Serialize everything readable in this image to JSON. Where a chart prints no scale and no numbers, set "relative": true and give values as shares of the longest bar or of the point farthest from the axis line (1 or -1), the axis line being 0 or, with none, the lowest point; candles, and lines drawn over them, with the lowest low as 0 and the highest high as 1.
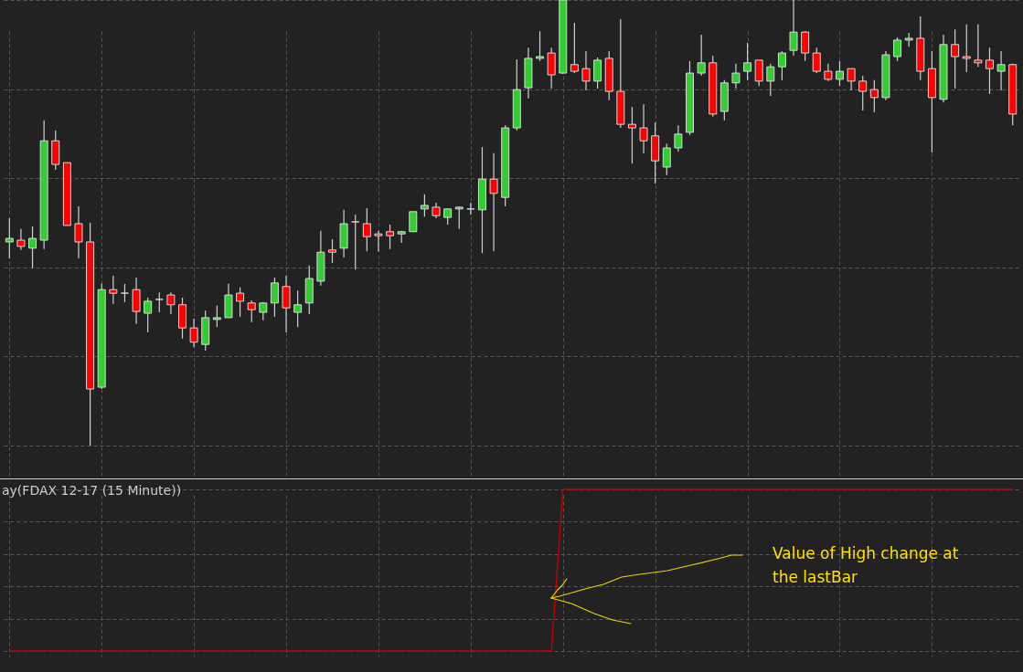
{
  "chart_data": [
    {
      "type": "candlestick",
      "relative": true,
      "grid": true,
      "categories": [
        null,
        null,
        null,
        null,
        null,
        null,
        null,
        null,
        null,
        null,
        null,
        null,
        null,
        null,
        null,
        null,
        null,
        null,
        null,
        null,
        null,
        null,
        null,
        null,
        null,
        null,
        null,
        null,
        null,
        null,
        null,
        null,
        null,
        null,
        null,
        null,
        null,
        null,
        null,
        null,
        null,
        null,
        null,
        null,
        null,
        null,
        null,
        null,
        null,
        null,
        null,
        null,
        null,
        null,
        null,
        null,
        null,
        null,
        null,
        null,
        null,
        null,
        null,
        null,
        null,
        null,
        null,
        null,
        null,
        null,
        null,
        null,
        null,
        null,
        null,
        null,
        null,
        null,
        null,
        null,
        null,
        null,
        null,
        null,
        null,
        null,
        null,
        null
      ],
      "ohlc": [
        [
          0.457,
          0.51,
          0.42,
          0.465
        ],
        [
          0.461,
          0.486,
          0.439,
          0.447
        ],
        [
          0.443,
          0.492,
          0.398,
          0.465
        ],
        [
          0.461,
          0.73,
          0.441,
          0.684
        ],
        [
          0.684,
          0.707,
          0.619,
          0.631
        ],
        [
          0.635,
          0.635,
          0.494,
          0.494
        ],
        [
          0.498,
          0.537,
          0.42,
          0.457
        ],
        [
          0.457,
          0.5,
          0,
          0.127
        ],
        [
          0.131,
          0.363,
          0.127,
          0.35
        ],
        [
          0.35,
          0.381,
          0.318,
          0.342
        ],
        [
          0.342,
          0.363,
          0.322,
          0.342
        ],
        [
          0.35,
          0.377,
          0.273,
          0.301
        ],
        [
          0.297,
          0.332,
          0.254,
          0.324
        ],
        [
          0.328,
          0.344,
          0.299,
          0.328
        ],
        [
          0.338,
          0.344,
          0.295,
          0.316
        ],
        [
          0.316,
          0.332,
          0.24,
          0.264
        ],
        [
          0.264,
          0.285,
          0.221,
          0.232
        ],
        [
          0.227,
          0.303,
          0.213,
          0.287
        ],
        [
          0.283,
          0.314,
          0.266,
          0.287
        ],
        [
          0.287,
          0.363,
          0.287,
          0.338
        ],
        [
          0.342,
          0.355,
          0.289,
          0.324
        ],
        [
          0.32,
          0.326,
          0.277,
          0.305
        ],
        [
          0.299,
          0.322,
          0.281,
          0.32
        ],
        [
          0.32,
          0.377,
          0.289,
          0.365
        ],
        [
          0.357,
          0.381,
          0.254,
          0.309
        ],
        [
          0.299,
          0.348,
          0.266,
          0.316
        ],
        [
          0.32,
          0.404,
          0.295,
          0.375
        ],
        [
          0.369,
          0.482,
          0.359,
          0.434
        ],
        [
          0.439,
          0.463,
          0.41,
          0.434
        ],
        [
          0.443,
          0.529,
          0.422,
          0.498
        ],
        [
          0.502,
          0.518,
          0.395,
          0.502
        ],
        [
          0.498,
          0.533,
          0.436,
          0.469
        ],
        [
          0.475,
          0.482,
          0.436,
          0.471
        ],
        [
          0.48,
          0.496,
          0.441,
          0.471
        ],
        [
          0.475,
          0.482,
          0.455,
          0.48
        ],
        [
          0.48,
          0.525,
          0.48,
          0.525
        ],
        [
          0.531,
          0.564,
          0.514,
          0.539
        ],
        [
          0.535,
          0.545,
          0.51,
          0.516
        ],
        [
          0.512,
          0.533,
          0.496,
          0.531
        ],
        [
          0.531,
          0.537,
          0.486,
          0.535
        ],
        [
          0.531,
          0.545,
          0.518,
          0.531
        ],
        [
          0.529,
          0.67,
          0.432,
          0.598
        ],
        [
          0.598,
          0.656,
          0.436,
          0.566
        ],
        [
          0.557,
          0.719,
          0.537,
          0.713
        ],
        [
          0.713,
          0.867,
          0.707,
          0.799
        ],
        [
          0.803,
          0.893,
          0.779,
          0.869
        ],
        [
          0.869,
          0.93,
          0.863,
          0.873
        ],
        [
          0.881,
          0.893,
          0.801,
          0.832
        ],
        [
          0.836,
          1,
          0.834,
          1
        ],
        [
          0.855,
          0.949,
          0.836,
          0.84
        ],
        [
          0.846,
          0.885,
          0.797,
          0.818
        ],
        [
          0.818,
          0.871,
          0.801,
          0.865
        ],
        [
          0.869,
          0.885,
          0.775,
          0.795
        ],
        [
          0.795,
          0.957,
          0.713,
          0.721
        ],
        [
          0.721,
          0.76,
          0.633,
          0.713
        ],
        [
          0.713,
          0.766,
          0.656,
          0.684
        ],
        [
          0.695,
          0.725,
          0.588,
          0.639
        ],
        [
          0.625,
          0.678,
          0.607,
          0.668
        ],
        [
          0.668,
          0.719,
          0.66,
          0.699
        ],
        [
          0.703,
          0.863,
          0.697,
          0.836
        ],
        [
          0.836,
          0.922,
          0.83,
          0.859
        ],
        [
          0.859,
          0.875,
          0.738,
          0.744
        ],
        [
          0.75,
          0.82,
          0.73,
          0.814
        ],
        [
          0.814,
          0.857,
          0.801,
          0.836
        ],
        [
          0.84,
          0.904,
          0.82,
          0.859
        ],
        [
          0.865,
          0.865,
          0.807,
          0.818
        ],
        [
          0.818,
          0.857,
          0.785,
          0.85
        ],
        [
          0.85,
          0.885,
          0.82,
          0.881
        ],
        [
          0.887,
          1,
          0.875,
          0.928
        ],
        [
          0.928,
          0.93,
          0.863,
          0.881
        ],
        [
          0.881,
          0.893,
          0.836,
          0.84
        ],
        [
          0.84,
          0.857,
          0.818,
          0.822
        ],
        [
          0.822,
          0.863,
          0.807,
          0.84
        ],
        [
          0.846,
          0.846,
          0.797,
          0.818
        ],
        [
          0.818,
          0.83,
          0.752,
          0.795
        ],
        [
          0.799,
          0.82,
          0.748,
          0.781
        ],
        [
          0.781,
          0.885,
          0.775,
          0.877
        ],
        [
          0.873,
          0.916,
          0.863,
          0.91
        ],
        [
          0.91,
          0.926,
          0.895,
          0.914
        ],
        [
          0.914,
          0.963,
          0.82,
          0.84
        ],
        [
          0.846,
          0.885,
          0.658,
          0.781
        ],
        [
          0.777,
          0.922,
          0.77,
          0.9
        ],
        [
          0.9,
          0.934,
          0.801,
          0.873
        ],
        [
          0.873,
          0.945,
          0.838,
          0.869
        ],
        [
          0.865,
          0.945,
          0.85,
          0.859
        ],
        [
          0.865,
          0.893,
          0.789,
          0.846
        ],
        [
          0.84,
          0.885,
          0.797,
          0.855
        ],
        [
          0.855,
          0.857,
          0.719,
          0.744
        ]
      ],
      "colors": [
        "#33cc33",
        "#ff0000",
        "#33cc33",
        "#33cc33",
        "#ff0000",
        "#ff0000",
        "#ff0000",
        "#ff0000",
        "#33cc33",
        "#ff0000",
        "#d0d0d0",
        "#ff0000",
        "#33cc33",
        "#d0d0d0",
        "#ff0000",
        "#ff0000",
        "#ff0000",
        "#33cc33",
        "#33cc33",
        "#33cc33",
        "#ff0000",
        "#ff0000",
        "#33cc33",
        "#33cc33",
        "#ff0000",
        "#33cc33",
        "#33cc33",
        "#33cc33",
        "#ff0000",
        "#33cc33",
        "#d0d0d0",
        "#ff0000",
        "#ff0000",
        "#ff0000",
        "#33cc33",
        "#33cc33",
        "#33cc33",
        "#ff0000",
        "#33cc33",
        "#33cc33",
        "#d0d0d0",
        "#33cc33",
        "#ff0000",
        "#33cc33",
        "#33cc33",
        "#33cc33",
        "#33cc33",
        "#ff0000",
        "#33cc33",
        "#ff0000",
        "#ff0000",
        "#33cc33",
        "#ff0000",
        "#ff0000",
        "#ff0000",
        "#ff0000",
        "#ff0000",
        "#33cc33",
        "#33cc33",
        "#33cc33",
        "#33cc33",
        "#ff0000",
        "#33cc33",
        "#33cc33",
        "#33cc33",
        "#ff0000",
        "#33cc33",
        "#33cc33",
        "#33cc33",
        "#ff0000",
        "#ff0000",
        "#ff0000",
        "#33cc33",
        "#ff0000",
        "#ff0000",
        "#ff0000",
        "#33cc33",
        "#33cc33",
        "#33cc33",
        "#ff0000",
        "#ff0000",
        "#33cc33",
        "#ff0000",
        "#ff0000",
        "#ff0000",
        "#ff0000",
        "#33cc33",
        "#ff0000"
      ]
    },
    {
      "type": "line",
      "relative": true,
      "grid": true,
      "categories": [
        null,
        null,
        null,
        null,
        null,
        null,
        null,
        null,
        null,
        null,
        null,
        null,
        null,
        null,
        null,
        null,
        null,
        null,
        null,
        null,
        null,
        null,
        null,
        null,
        null,
        null,
        null,
        null,
        null,
        null,
        null,
        null,
        null,
        null,
        null,
        null,
        null,
        null,
        null,
        null,
        null,
        null,
        null,
        null,
        null,
        null,
        null,
        null,
        null,
        null,
        null,
        null,
        null,
        null,
        null,
        null,
        null,
        null,
        null,
        null,
        null,
        null,
        null,
        null,
        null,
        null,
        null,
        null,
        null,
        null,
        null,
        null,
        null,
        null,
        null,
        null,
        null,
        null,
        null,
        null,
        null,
        null,
        null,
        null,
        null,
        null,
        null,
        null
      ],
      "series": [
        {
          "color": "#c00000",
          "values": [
            0,
            0,
            0,
            0,
            0,
            0,
            0,
            0,
            0,
            0,
            0,
            0,
            0,
            0,
            0,
            0,
            0,
            0,
            0,
            0,
            0,
            0,
            0,
            0,
            0,
            0,
            0,
            0,
            0,
            0,
            0,
            0,
            0,
            0,
            0,
            0,
            0,
            0,
            0,
            0,
            0,
            0,
            0,
            0,
            0,
            0,
            0,
            0,
            1,
            1,
            1,
            1,
            1,
            1,
            1,
            1,
            1,
            1,
            1,
            1,
            1,
            1,
            1,
            1,
            1,
            1,
            1,
            1,
            1,
            1,
            1,
            1,
            1,
            1,
            1,
            1,
            1,
            1,
            1,
            1,
            1,
            1,
            1,
            1,
            1,
            1,
            1,
            1
          ]
        }
      ],
      "annotations": [
        "ay(FDAX 12-17 (15 Minute))",
        "Value of High change at the lastBar"
      ]
    }
  ]
}
